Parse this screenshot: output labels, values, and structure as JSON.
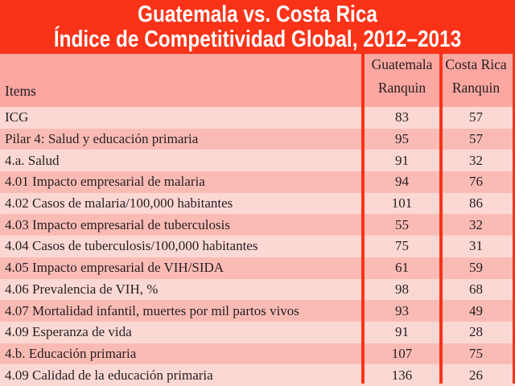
{
  "title": {
    "line1": "Guatemala vs. Costa Rica",
    "line2": "Índice de Competitividad Global, 2012–2013"
  },
  "table": {
    "header": {
      "items": "Items",
      "col_guatemala": [
        "Guatemala",
        "Ranquin"
      ],
      "col_costa_rica": [
        "Costa Rica",
        "Ranquin"
      ]
    },
    "rows": [
      {
        "item": "ICG",
        "guatemala": "83",
        "costa_rica": "57"
      },
      {
        "item": "Pilar 4: Salud y educación primaria",
        "guatemala": "95",
        "costa_rica": "57"
      },
      {
        "item": "4.a. Salud",
        "guatemala": "91",
        "costa_rica": "32"
      },
      {
        "item": "4.01 Impacto empresarial de malaria",
        "guatemala": "94",
        "costa_rica": "76"
      },
      {
        "item": "4.02 Casos de malaria/100,000 habitantes",
        "guatemala": "101",
        "costa_rica": "86"
      },
      {
        "item": "4.03 Impacto empresarial de tuberculosis",
        "guatemala": "55",
        "costa_rica": "32"
      },
      {
        "item": "4.04 Casos de tuberculosis/100,000 habitantes",
        "guatemala": "75",
        "costa_rica": "31"
      },
      {
        "item": "4.05 Impacto empresarial de VIH/SIDA",
        "guatemala": "61",
        "costa_rica": "59"
      },
      {
        "item": "4.06 Prevalencia de VIH, %",
        "guatemala": "98",
        "costa_rica": "68"
      },
      {
        "item": "4.07 Mortalidad infantil, muertes por mil partos vivos",
        "guatemala": "93",
        "costa_rica": "49"
      },
      {
        "item": "4.09 Esperanza de vida",
        "guatemala": "91",
        "costa_rica": "28"
      },
      {
        "item": "4.b. Educación primaria",
        "guatemala": "107",
        "costa_rica": "75"
      },
      {
        "item": "4.09 Calidad de la educación primaria",
        "guatemala": "136",
        "costa_rica": "26"
      }
    ]
  },
  "chart_data": {
    "type": "table",
    "title": "Guatemala vs. Costa Rica — Índice de Competitividad Global, 2012–2013",
    "columns": [
      "Items",
      "Guatemala Ranquin",
      "Costa Rica Ranquin"
    ],
    "rows": [
      [
        "ICG",
        83,
        57
      ],
      [
        "Pilar 4: Salud y educación primaria",
        95,
        57
      ],
      [
        "4.a. Salud",
        91,
        32
      ],
      [
        "4.01 Impacto empresarial de malaria",
        94,
        76
      ],
      [
        "4.02 Casos de malaria/100,000 habitantes",
        101,
        86
      ],
      [
        "4.03 Impacto empresarial de tuberculosis",
        55,
        32
      ],
      [
        "4.04 Casos de tuberculosis/100,000 habitantes",
        75,
        31
      ],
      [
        "4.05 Impacto empresarial de VIH/SIDA",
        61,
        59
      ],
      [
        "4.06 Prevalencia de VIH, %",
        98,
        68
      ],
      [
        "4.07 Mortalidad infantil, muertes por mil partos vivos",
        93,
        49
      ],
      [
        "4.09 Esperanza de vida",
        91,
        28
      ],
      [
        "4.b. Educación primaria",
        107,
        75
      ],
      [
        "4.09 Calidad de la educación primaria",
        136,
        26
      ]
    ],
    "layout": {
      "row_striping": "alternating light/dark pink starting light",
      "column_separators": "red vertical lines",
      "title_position": "top, centered, white on red"
    }
  },
  "colors": {
    "accent_red": "#FA3318",
    "header_row_bg": "#FCA7A1",
    "row_dark_bg": "#FBBBB5",
    "row_light_bg": "#FCD8D4",
    "title_text": "#FFFFFF",
    "body_text": "#231F20"
  }
}
